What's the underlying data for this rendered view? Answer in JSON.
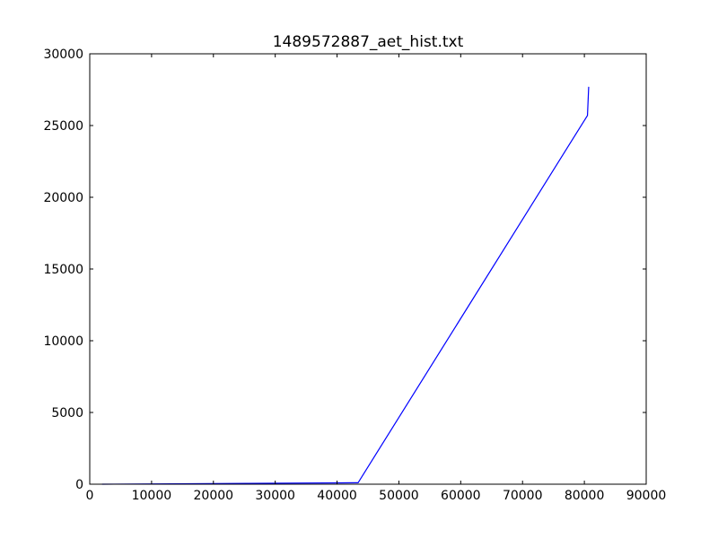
{
  "chart_data": {
    "type": "line",
    "title": "1489572887_aet_hist.txt",
    "xlabel": "",
    "ylabel": "",
    "xlim": [
      0,
      90000
    ],
    "ylim": [
      0,
      30000
    ],
    "xticks": [
      0,
      10000,
      20000,
      30000,
      40000,
      50000,
      60000,
      70000,
      80000,
      90000
    ],
    "yticks": [
      0,
      5000,
      10000,
      15000,
      20000,
      25000,
      30000
    ],
    "xtick_labels": [
      "0",
      "10000",
      "20000",
      "30000",
      "40000",
      "50000",
      "60000",
      "70000",
      "80000",
      "90000"
    ],
    "ytick_labels": [
      "0",
      "5000",
      "10000",
      "15000",
      "20000",
      "25000",
      "30000"
    ],
    "grid": false,
    "legend": "none",
    "series": [
      {
        "color": "#0000ff",
        "x": [
          2000,
          43000,
          43400,
          80500,
          80700
        ],
        "y": [
          0,
          100,
          100,
          25700,
          27700
        ]
      }
    ]
  }
}
